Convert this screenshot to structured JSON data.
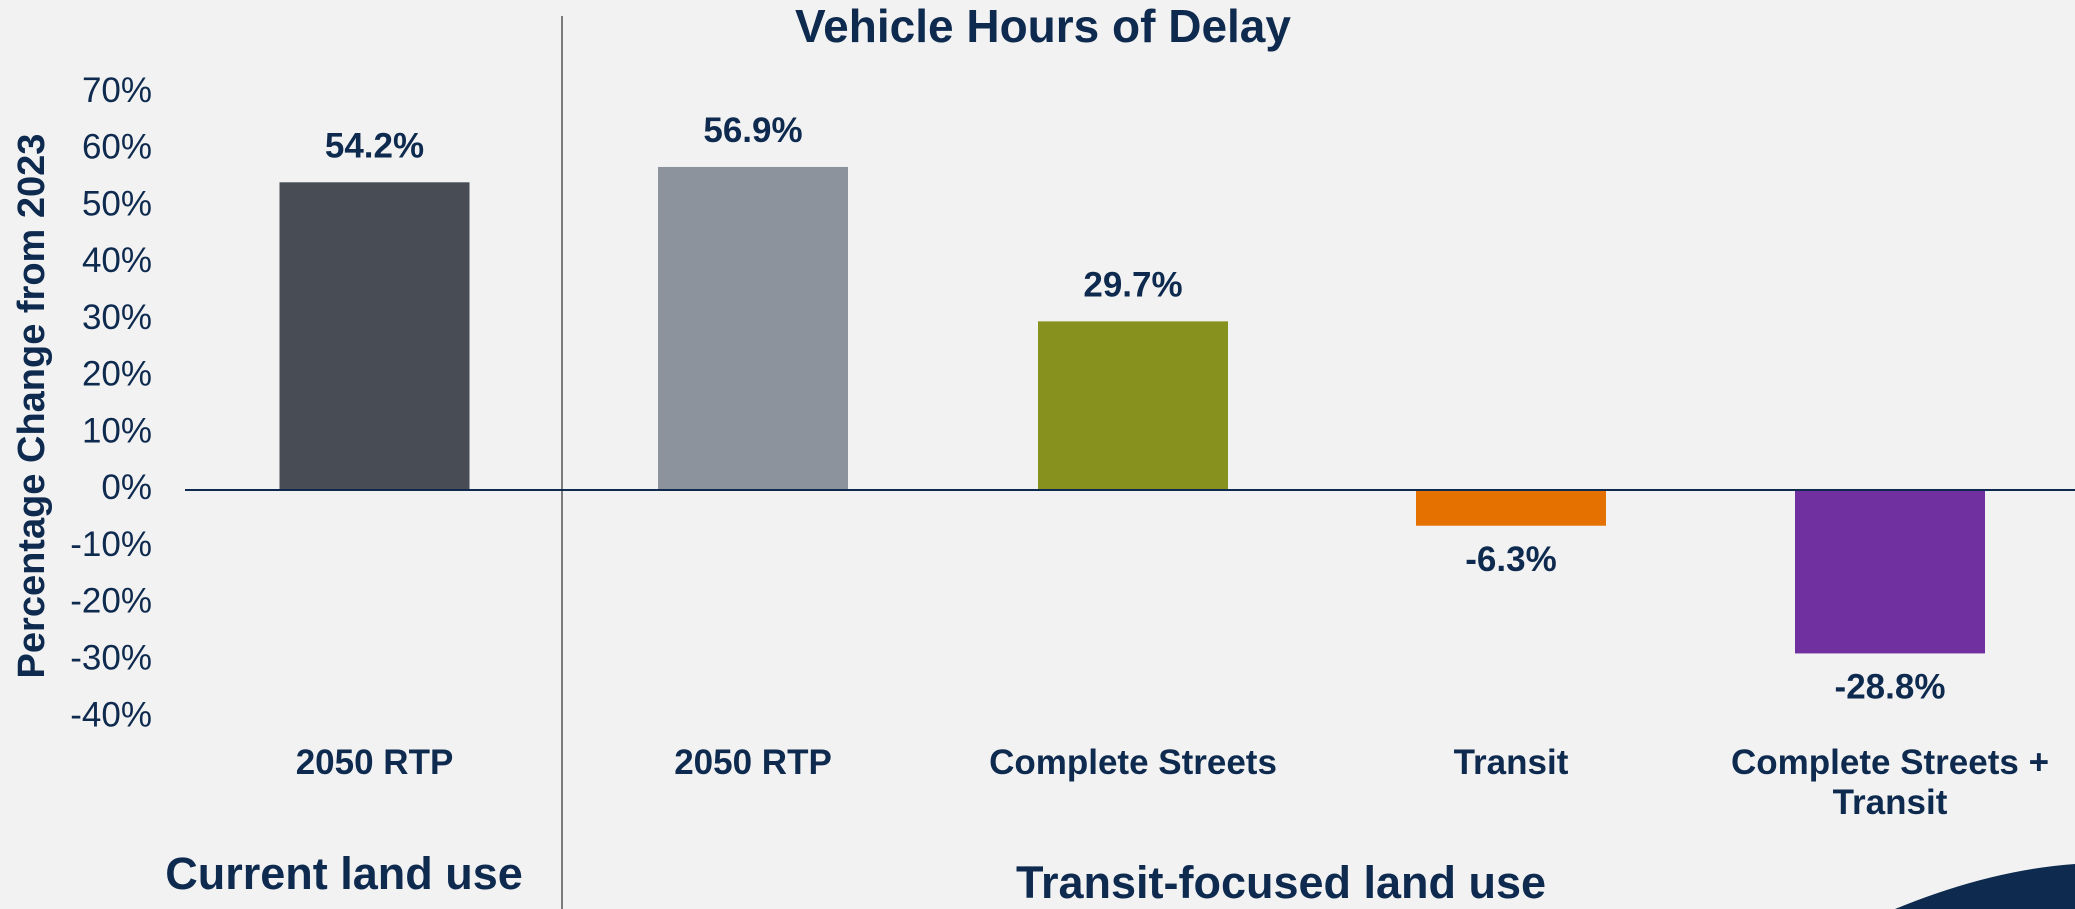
{
  "chart_data": {
    "type": "bar",
    "title": "Vehicle Hours of Delay",
    "y_label": "Percentage Change from 2023",
    "categories": [
      "2050 RTP",
      "2050 RTP",
      "Complete Streets",
      "Transit",
      "Complete Streets + Transit"
    ],
    "values": [
      54.2,
      56.9,
      29.7,
      -6.3,
      -28.8
    ],
    "value_labels": [
      "54.2%",
      "56.9%",
      "29.7%",
      "-6.3%",
      "-28.8%"
    ],
    "colors": [
      "#474c55",
      "#8c939d",
      "#87911e",
      "#e57200",
      "#7030a0"
    ],
    "group_labels": [
      "Current land use",
      "Transit-focused land use"
    ],
    "ylim": [
      -40,
      70
    ],
    "yticks": [
      {
        "value": -40,
        "label": "-40%"
      },
      {
        "value": -30,
        "label": "-30%"
      },
      {
        "value": -20,
        "label": "-20%"
      },
      {
        "value": -10,
        "label": "-10%"
      },
      {
        "value": 0,
        "label": "0%"
      },
      {
        "value": 10,
        "label": "10%"
      },
      {
        "value": 20,
        "label": "20%"
      },
      {
        "value": 30,
        "label": "30%"
      },
      {
        "value": 40,
        "label": "40%"
      },
      {
        "value": 50,
        "label": "50%"
      },
      {
        "value": 60,
        "label": "60%"
      },
      {
        "value": 70,
        "label": "70%"
      }
    ],
    "grid": false
  }
}
